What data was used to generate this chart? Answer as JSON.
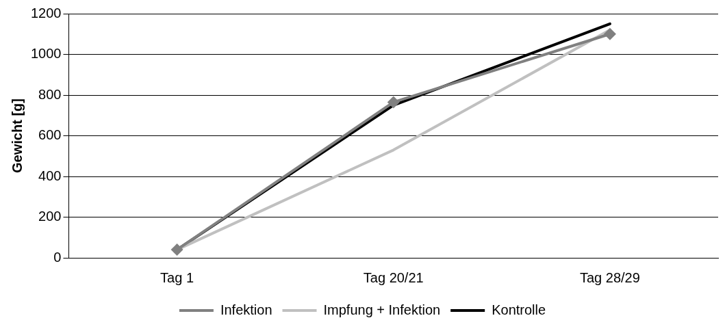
{
  "chart_data": {
    "type": "line",
    "ylabel": "Gewicht [g]",
    "categories": [
      "Tag 1",
      "Tag 20/21",
      "Tag 28/29"
    ],
    "series": [
      {
        "name": "Infektion",
        "color": "#808080",
        "values": [
          40,
          765,
          1100
        ],
        "marker": "diamond"
      },
      {
        "name": "Impfung + Infektion",
        "color": "#c0c0c0",
        "values": [
          40,
          530,
          1120
        ],
        "marker": "none"
      },
      {
        "name": "Kontrolle",
        "color": "#000000",
        "values": [
          40,
          750,
          1150
        ],
        "marker": "none"
      }
    ],
    "ylim": [
      0,
      1200
    ],
    "yticks": [
      0,
      200,
      400,
      600,
      800,
      1000,
      1200
    ],
    "grid": "y",
    "legend": "bottom",
    "line_style": "solid"
  }
}
